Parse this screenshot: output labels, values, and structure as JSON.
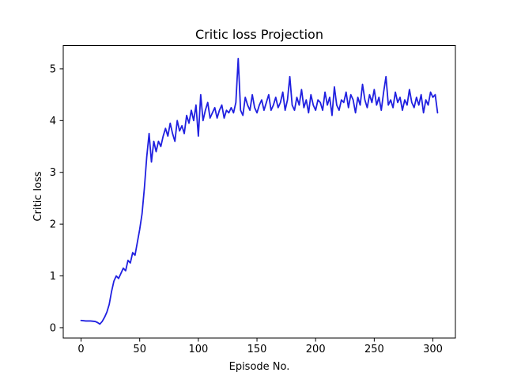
{
  "chart_data": {
    "type": "line",
    "title": "Critic loss Projection",
    "xlabel": "Episode No.",
    "ylabel": "Critic loss",
    "xlim": [
      -15.2,
      319.2
    ],
    "ylim": [
      -0.2,
      5.45
    ],
    "xticks": [
      0,
      50,
      100,
      150,
      200,
      250,
      300
    ],
    "yticks": [
      0,
      1,
      2,
      3,
      4,
      5
    ],
    "grid": false,
    "legend": "none",
    "series": [
      {
        "color": "#2020e0",
        "x": [
          0,
          4,
          8,
          12,
          14,
          16,
          18,
          20,
          22,
          24,
          26,
          28,
          30,
          32,
          34,
          36,
          38,
          40,
          42,
          44,
          46,
          48,
          50,
          52,
          54,
          56,
          58,
          60,
          62,
          64,
          66,
          68,
          70,
          72,
          74,
          76,
          78,
          80,
          82,
          84,
          86,
          88,
          90,
          92,
          94,
          96,
          98,
          100,
          102,
          104,
          106,
          108,
          110,
          112,
          114,
          116,
          118,
          120,
          122,
          124,
          126,
          128,
          130,
          132,
          134,
          136,
          138,
          140,
          142,
          144,
          146,
          148,
          150,
          152,
          154,
          156,
          158,
          160,
          162,
          164,
          166,
          168,
          170,
          172,
          174,
          176,
          178,
          180,
          182,
          184,
          186,
          188,
          190,
          192,
          194,
          196,
          198,
          200,
          202,
          204,
          206,
          208,
          210,
          212,
          214,
          216,
          218,
          220,
          222,
          224,
          226,
          228,
          230,
          232,
          234,
          236,
          238,
          240,
          242,
          244,
          246,
          248,
          250,
          252,
          254,
          256,
          258,
          260,
          262,
          264,
          266,
          268,
          270,
          272,
          274,
          276,
          278,
          280,
          282,
          284,
          286,
          288,
          290,
          292,
          294,
          296,
          298,
          300,
          302,
          304
        ],
        "y": [
          0.14,
          0.13,
          0.13,
          0.12,
          0.1,
          0.07,
          0.12,
          0.2,
          0.3,
          0.45,
          0.7,
          0.9,
          1.0,
          0.95,
          1.05,
          1.15,
          1.1,
          1.3,
          1.25,
          1.45,
          1.4,
          1.65,
          1.9,
          2.2,
          2.7,
          3.3,
          3.75,
          3.2,
          3.6,
          3.4,
          3.6,
          3.5,
          3.7,
          3.85,
          3.7,
          3.95,
          3.75,
          3.6,
          4.0,
          3.8,
          3.9,
          3.75,
          4.1,
          3.95,
          4.2,
          4.0,
          4.3,
          3.7,
          4.5,
          4.0,
          4.2,
          4.35,
          4.05,
          4.15,
          4.25,
          4.05,
          4.2,
          4.3,
          4.05,
          4.2,
          4.15,
          4.25,
          4.15,
          4.35,
          5.2,
          4.2,
          4.1,
          4.45,
          4.3,
          4.2,
          4.5,
          4.25,
          4.15,
          4.3,
          4.4,
          4.2,
          4.35,
          4.5,
          4.2,
          4.3,
          4.45,
          4.25,
          4.35,
          4.55,
          4.2,
          4.4,
          4.85,
          4.3,
          4.2,
          4.45,
          4.3,
          4.6,
          4.25,
          4.4,
          4.15,
          4.5,
          4.3,
          4.2,
          4.4,
          4.35,
          4.2,
          4.55,
          4.3,
          4.45,
          4.1,
          4.65,
          4.3,
          4.2,
          4.4,
          4.35,
          4.55,
          4.25,
          4.5,
          4.4,
          4.15,
          4.45,
          4.3,
          4.7,
          4.4,
          4.25,
          4.5,
          4.35,
          4.6,
          4.3,
          4.45,
          4.2,
          4.55,
          4.85,
          4.3,
          4.4,
          4.25,
          4.55,
          4.35,
          4.45,
          4.2,
          4.4,
          4.3,
          4.6,
          4.35,
          4.25,
          4.45,
          4.3,
          4.5,
          4.15,
          4.4,
          4.3,
          4.55,
          4.45,
          4.5,
          4.15
        ]
      }
    ]
  }
}
